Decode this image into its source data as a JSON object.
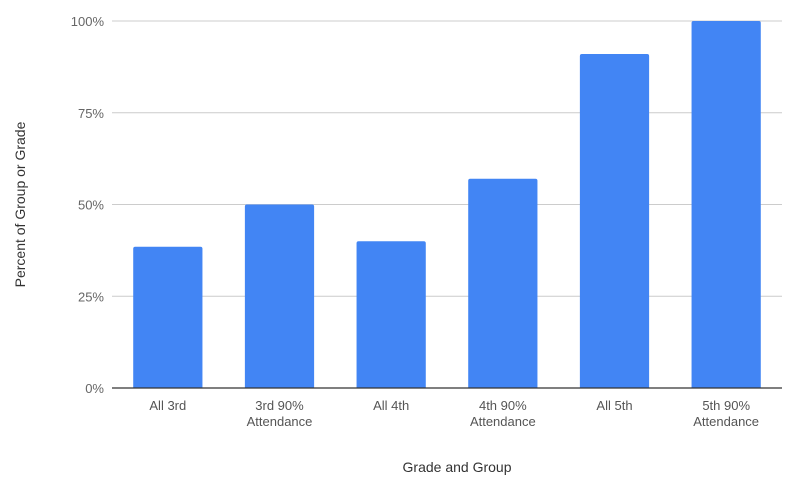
{
  "chart_data": {
    "type": "bar",
    "categories": [
      "All 3rd",
      "3rd 90% Attendance",
      "All 4th",
      "4th 90% Attendance",
      "All 5th",
      "5th 90% Attendance"
    ],
    "category_lines": [
      [
        "All 3rd"
      ],
      [
        "3rd 90%",
        "Attendance"
      ],
      [
        "All 4th"
      ],
      [
        "4th 90%",
        "Attendance"
      ],
      [
        "All 5th"
      ],
      [
        "5th 90%",
        "Attendance"
      ]
    ],
    "values": [
      38.5,
      50,
      40,
      57,
      91,
      100
    ],
    "title": "",
    "xlabel": "Grade and Group",
    "ylabel": "Percent of Group or Grade",
    "ylim": [
      0,
      100
    ],
    "yticks": [
      0,
      25,
      50,
      75,
      100
    ],
    "ytick_labels": [
      "0%",
      "25%",
      "50%",
      "75%",
      "100%"
    ],
    "grid": true,
    "legend": "none",
    "colors": {
      "bar": "#4285f4",
      "grid": "#cccccc",
      "baseline": "#333333"
    }
  }
}
